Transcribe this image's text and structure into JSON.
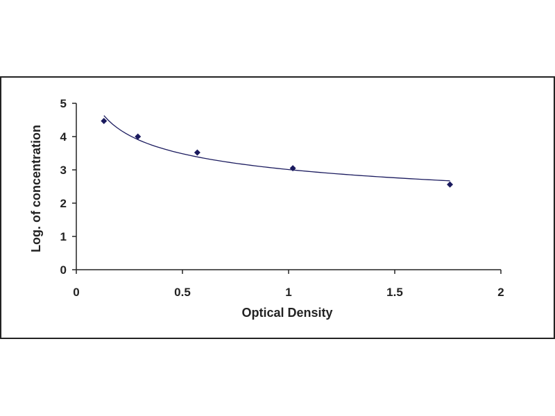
{
  "chart_data": {
    "type": "scatter",
    "title": "",
    "xlabel": "Optical Density",
    "ylabel": "Log. of concentration",
    "xlim": [
      0,
      2
    ],
    "ylim": [
      0,
      5
    ],
    "xticks": [
      "0",
      "0.5",
      "1",
      "1.5",
      "2"
    ],
    "yticks": [
      "0",
      "1",
      "2",
      "3",
      "4",
      "5"
    ],
    "grid": false,
    "legend": "none",
    "series": [
      {
        "marker": "diamond",
        "fit": "power-curve",
        "x": [
          0.13,
          0.29,
          0.57,
          1.02,
          1.76
        ],
        "y": [
          4.47,
          4.0,
          3.52,
          3.05,
          2.56
        ]
      }
    ]
  },
  "colors": {
    "marker": "#1a1a5e",
    "curve": "#1a1a5e",
    "axis": "#222222",
    "frame": "#222222",
    "background": "#ffffff"
  }
}
